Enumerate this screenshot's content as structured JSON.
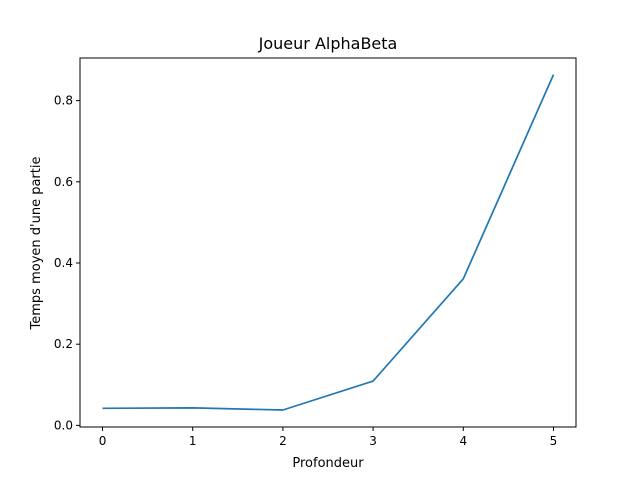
{
  "chart_data": {
    "type": "line",
    "title": "Joueur AlphaBeta",
    "xlabel": "Profondeur",
    "ylabel": "Temps moyen d'une partie",
    "x": [
      0,
      1,
      2,
      3,
      4,
      5
    ],
    "series": [
      {
        "values": [
          0.042,
          0.043,
          0.038,
          0.109,
          0.361,
          0.864
        ],
        "color": "#1f77b4"
      }
    ],
    "xticks": [
      0,
      1,
      2,
      3,
      4,
      5
    ],
    "xtick_labels": [
      "0",
      "1",
      "2",
      "3",
      "4",
      "5"
    ],
    "yticks": [
      0.0,
      0.2,
      0.4,
      0.6,
      0.8
    ],
    "ytick_labels": [
      "0.0",
      "0.2",
      "0.4",
      "0.6",
      "0.8"
    ],
    "xlim": [
      -0.25,
      5.25
    ],
    "ylim": [
      -0.004,
      0.905
    ],
    "grid": false,
    "legend": "none"
  }
}
